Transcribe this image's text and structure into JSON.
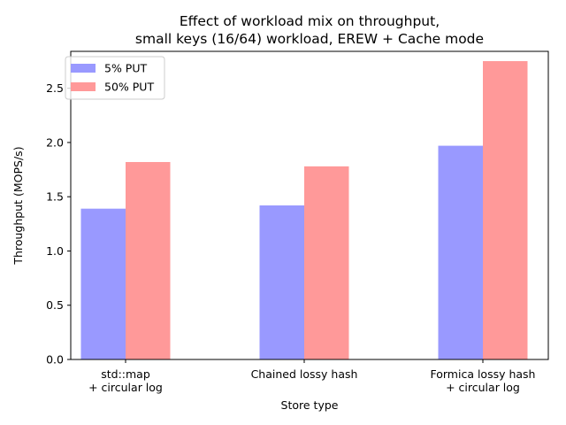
{
  "chart_data": {
    "type": "bar",
    "title_lines": [
      "Effect of workload mix on throughput,",
      "small keys (16/64) workload, EREW + Cache mode"
    ],
    "xlabel": "Store type",
    "ylabel": "Throughput (MOPS/s)",
    "categories": [
      [
        "std::map",
        "+ circular log"
      ],
      [
        "Chained lossy hash"
      ],
      [
        "Formica lossy hash",
        "+ circular log"
      ]
    ],
    "series": [
      {
        "name": "5% PUT",
        "values": [
          1.39,
          1.42,
          1.97
        ],
        "color": "#9999ff"
      },
      {
        "name": "50% PUT",
        "values": [
          1.82,
          1.78,
          2.75
        ],
        "color": "#ff9999"
      }
    ],
    "yticks": [
      "0.0",
      "0.5",
      "1.0",
      "1.5",
      "2.0",
      "2.5"
    ],
    "ylim": [
      0,
      2.84
    ],
    "grid": false,
    "legend_position": "top-left"
  }
}
